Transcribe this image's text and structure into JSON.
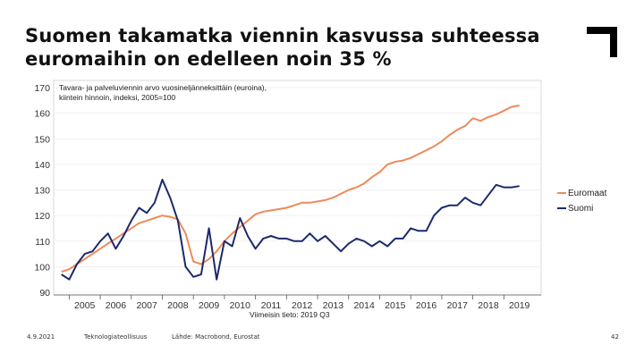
{
  "slide": {
    "title_line1": "Suomen takamatka viennin kasvussa suhteessa",
    "title_line2": "euromaihin on edelleen noin 35 %"
  },
  "footer": {
    "date": "4.9.2021",
    "organization": "Teknologiateollisuus",
    "source": "Lähde: Macrobond, Eurostat",
    "page_number": "42"
  },
  "colors": {
    "euromaat": "#ef8a5a",
    "suomi": "#1c2a6b",
    "axis": "#444444",
    "grid": "#e6e6e6",
    "mark": "#000000"
  },
  "chart_data": {
    "type": "line",
    "title_line1": "Tavara- ja palveluviennin arvo vuosineljänneksittäin (euroina),",
    "title_line2": "kiintein hinnoin, indeksi, 2005=100",
    "xlabel": "",
    "ylabel": "",
    "subnote": "Viimeisin tieto: 2019 Q3",
    "ylim": [
      90,
      170
    ],
    "yticks": [
      "170",
      "160",
      "150",
      "140",
      "130",
      "120",
      "110",
      "100",
      "90"
    ],
    "xlim": [
      2004.5,
      2020.2
    ],
    "xticks": [
      "2005",
      "2006",
      "2007",
      "2008",
      "2009",
      "2010",
      "2011",
      "2012",
      "2013",
      "2014",
      "2015",
      "2016",
      "2017",
      "2018",
      "2019"
    ],
    "legend_position": "right",
    "series": [
      {
        "name": "Euromaat",
        "color": "#ef8a5a",
        "x": [
          2004.75,
          2005.0,
          2005.25,
          2005.5,
          2005.75,
          2006.0,
          2006.25,
          2006.5,
          2006.75,
          2007.0,
          2007.25,
          2007.5,
          2007.75,
          2008.0,
          2008.25,
          2008.5,
          2008.75,
          2009.0,
          2009.25,
          2009.5,
          2009.75,
          2010.0,
          2010.25,
          2010.5,
          2010.75,
          2011.0,
          2011.25,
          2011.5,
          2011.75,
          2012.0,
          2012.25,
          2012.5,
          2012.75,
          2013.0,
          2013.25,
          2013.5,
          2013.75,
          2014.0,
          2014.25,
          2014.5,
          2014.75,
          2015.0,
          2015.25,
          2015.5,
          2015.75,
          2016.0,
          2016.25,
          2016.5,
          2016.75,
          2017.0,
          2017.25,
          2017.5,
          2017.75,
          2018.0,
          2018.25,
          2018.5,
          2018.75,
          2019.0,
          2019.25,
          2019.5
        ],
        "values": [
          98,
          99,
          101,
          103,
          105,
          107,
          109,
          111,
          113,
          115,
          117,
          118,
          119,
          120,
          119.5,
          118.5,
          113,
          102,
          101,
          103,
          106,
          110,
          113,
          115.5,
          118,
          120.5,
          121.5,
          122,
          122.5,
          123,
          124,
          125,
          125,
          125.5,
          126,
          127,
          128.5,
          130,
          131,
          132.5,
          135,
          137,
          140,
          141,
          141.5,
          142.5,
          144,
          145.5,
          147,
          149,
          151.5,
          153.5,
          155,
          158,
          157,
          158.5,
          159.5,
          161,
          162.5,
          163
        ]
      },
      {
        "name": "Suomi",
        "color": "#1c2a6b",
        "x": [
          2004.75,
          2005.0,
          2005.25,
          2005.5,
          2005.75,
          2006.0,
          2006.25,
          2006.5,
          2006.75,
          2007.0,
          2007.25,
          2007.5,
          2007.75,
          2008.0,
          2008.25,
          2008.5,
          2008.75,
          2009.0,
          2009.25,
          2009.5,
          2009.75,
          2010.0,
          2010.25,
          2010.5,
          2010.75,
          2011.0,
          2011.25,
          2011.5,
          2011.75,
          2012.0,
          2012.25,
          2012.5,
          2012.75,
          2013.0,
          2013.25,
          2013.5,
          2013.75,
          2014.0,
          2014.25,
          2014.5,
          2014.75,
          2015.0,
          2015.25,
          2015.5,
          2015.75,
          2016.0,
          2016.25,
          2016.5,
          2016.75,
          2017.0,
          2017.25,
          2017.5,
          2017.75,
          2018.0,
          2018.25,
          2018.5,
          2018.75,
          2019.0,
          2019.25,
          2019.5
        ],
        "values": [
          97,
          95,
          101,
          105,
          106,
          110,
          113,
          107,
          112,
          118,
          123,
          121,
          125,
          134,
          127,
          118,
          100,
          96,
          97,
          115,
          95,
          110,
          108,
          119,
          112,
          107,
          111,
          112,
          111,
          111,
          110,
          110,
          113,
          110,
          112,
          109,
          106,
          109,
          111,
          110,
          108,
          110,
          108,
          111,
          111,
          115,
          114,
          114,
          120,
          123,
          124,
          124,
          127,
          125,
          124,
          128,
          132,
          131,
          131,
          131.5
        ]
      }
    ]
  }
}
